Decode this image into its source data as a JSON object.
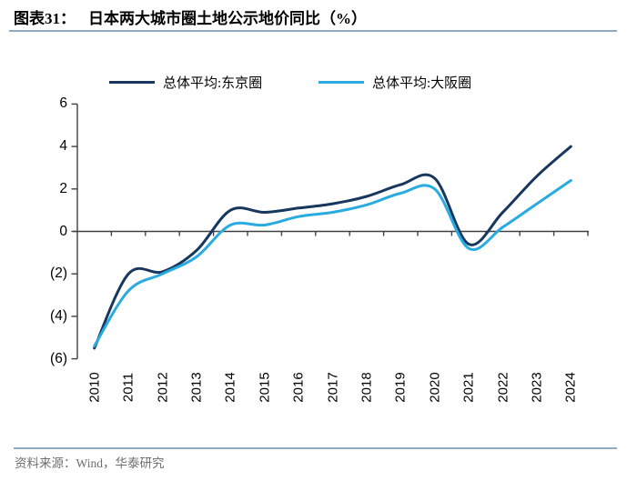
{
  "figure": {
    "label": "图表31：",
    "title": "日本两大城市圈土地公示地价同比（%）",
    "source": "资料来源：Wind，华泰研究"
  },
  "colors": {
    "tokyo_line": "#17375E",
    "osaka_line": "#29ABE2",
    "divider": "#8EA9C1",
    "axis": "#404040",
    "source_text": "#6E6E6E"
  },
  "chart_data": {
    "type": "line",
    "x": [
      "2010",
      "2011",
      "2012",
      "2013",
      "2014",
      "2015",
      "2016",
      "2017",
      "2018",
      "2019",
      "2020",
      "2021",
      "2022",
      "2023",
      "2024"
    ],
    "series": [
      {
        "name": "总体平均:东京圈",
        "color": "#17375E",
        "values": [
          -5.5,
          -2.0,
          -1.9,
          -0.9,
          1.0,
          0.9,
          1.1,
          1.3,
          1.65,
          2.2,
          2.5,
          -0.6,
          0.9,
          2.6,
          4.0
        ]
      },
      {
        "name": "总体平均:大阪圈",
        "color": "#29ABE2",
        "values": [
          -5.4,
          -2.8,
          -2.0,
          -1.2,
          0.3,
          0.3,
          0.7,
          0.9,
          1.25,
          1.8,
          2.0,
          -0.8,
          0.2,
          1.3,
          2.4
        ]
      }
    ],
    "ylim": [
      -6,
      6
    ],
    "yticks": [
      6,
      4,
      2,
      0,
      -2,
      -4,
      -6
    ],
    "ytick_labels": [
      "6",
      "4",
      "2",
      "0",
      "(2)",
      "(4)",
      "(6)"
    ],
    "legend_position": "top",
    "grid": false
  }
}
